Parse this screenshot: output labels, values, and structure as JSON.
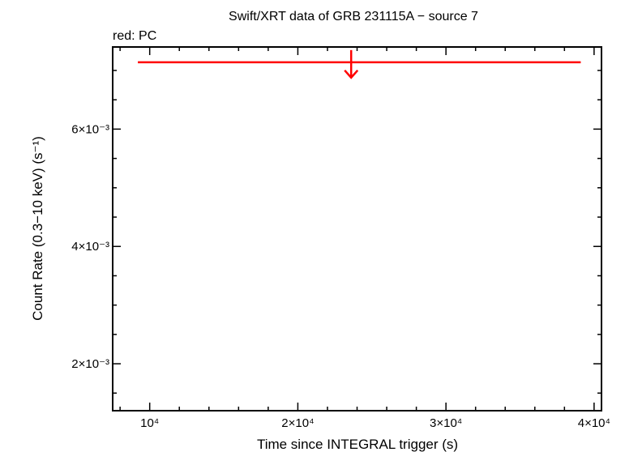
{
  "chart_data": {
    "type": "scatter",
    "title": "Swift/XRT data of GRB 231115A − source 7",
    "subtitle": "red: PC",
    "xlabel": "Time since INTEGRAL trigger (s)",
    "ylabel": "Count Rate (0.3−10 keV) (s⁻¹)",
    "xscale": "linear",
    "yscale": "linear",
    "xlim": [
      7500,
      40500
    ],
    "ylim": [
      0.0012,
      0.0074
    ],
    "x_ticks": [
      {
        "value": 10000,
        "label": "10⁴"
      },
      {
        "value": 20000,
        "label": "2×10⁴"
      },
      {
        "value": 30000,
        "label": "3×10⁴"
      },
      {
        "value": 40000,
        "label": "4×10⁴"
      }
    ],
    "y_ticks": [
      {
        "value": 0.002,
        "label": "2×10⁻³"
      },
      {
        "value": 0.004,
        "label": "4×10⁻³"
      },
      {
        "value": 0.006,
        "label": "6×10⁻³"
      }
    ],
    "grid": false,
    "legend": "none",
    "series": [
      {
        "name": "PC",
        "color": "#ff0000",
        "kind": "upper_limit",
        "points": [
          {
            "x": 23600,
            "x_lo": 9200,
            "x_hi": 39100,
            "y": 0.00714
          }
        ]
      }
    ]
  }
}
